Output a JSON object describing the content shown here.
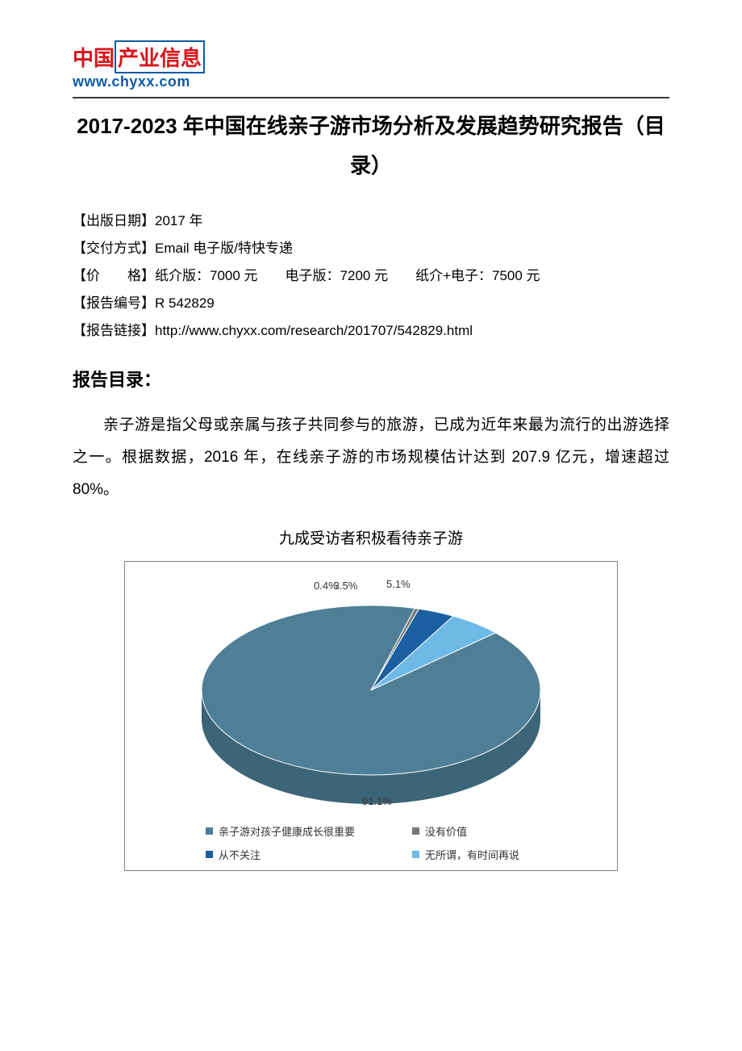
{
  "logo": {
    "line1_a": "中国",
    "line1_b": "产业信息",
    "url": "www.chyxx.com",
    "red_color": "#d7141a",
    "blue_color": "#0d5ba5"
  },
  "title": "2017-2023 年中国在线亲子游市场分析及发展趋势研究报告（目录）",
  "meta": {
    "pub_label": "【出版日期】",
    "pub_value": "2017 年",
    "deliver_label": "【交付方式】",
    "deliver_value": "Email 电子版/特快专递",
    "price_label": "【价　　格】",
    "price_value": "纸介版：7000 元　　电子版：7200 元　　纸介+电子：7500 元",
    "number_label": "【报告编号】",
    "number_value": "R 542829",
    "link_label": "【报告链接】",
    "link_value": "http://www.chyxx.com/research/201707/542829.html"
  },
  "section_head": "报告目录：",
  "body": "亲子游是指父母或亲属与孩子共同参与的旅游，已成为近年来最为流行的出游选择之一。根据数据，2016 年，在线亲子游的市场规模估计达到 207.9 亿元，增速超过 80%。",
  "chart": {
    "title": "九成受访者积极看待亲子游",
    "type": "pie3d",
    "slices": [
      {
        "label": "亲子游对孩子健康成长很重要",
        "value": 91.1,
        "color": "#4f7f96"
      },
      {
        "label": "没有价值",
        "value": 0.4,
        "color": "#777777"
      },
      {
        "label": "从不关注",
        "value": 3.5,
        "color": "#1a5fa0"
      },
      {
        "label": "无所谓，有时间再说",
        "value": 5.1,
        "color": "#6fb9e6"
      }
    ],
    "value_labels": {
      "big": "91.1%",
      "tiny1": "0.4%",
      "tiny2": "3.5%",
      "small": "5.1%"
    },
    "side_color": "#3d6578",
    "border_color": "#808080",
    "background": "#ffffff",
    "legend_swatch_colors": [
      "#4f7f96",
      "#777777",
      "#1a5fa0",
      "#6fb9e6"
    ]
  }
}
